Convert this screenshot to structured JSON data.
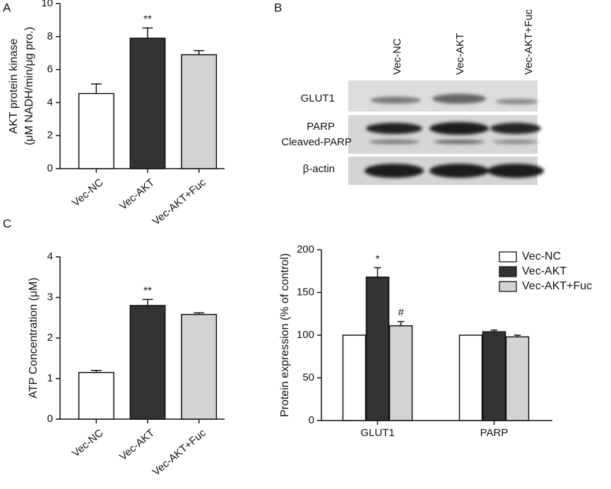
{
  "chart_data": [
    {
      "type": "bar",
      "panel": "A",
      "ylabel": [
        "AKT protein kinase",
        "(μM NADH/min/μg pro.)"
      ],
      "categories": [
        "Vec-NC",
        "Vec-AKT",
        "Vec-AKT+Fuc"
      ],
      "values": [
        4.55,
        7.9,
        6.9
      ],
      "errors": [
        0.58,
        0.62,
        0.25
      ],
      "value_annotations": [
        null,
        "**",
        null
      ],
      "colors": [
        "#ffffff",
        "#333333",
        "#d3d3d3"
      ],
      "ylim": [
        0,
        10
      ],
      "yticks": [
        0,
        2,
        4,
        6,
        8,
        10
      ]
    },
    {
      "type": "bar",
      "panel": "C",
      "ylabel": "ATP Concentration (μM)",
      "categories": [
        "Vec-NC",
        "Vec-AKT",
        "Vec-AKT+Fuc"
      ],
      "values": [
        1.15,
        2.8,
        2.58
      ],
      "errors": [
        0.05,
        0.15,
        0.04
      ],
      "value_annotations": [
        null,
        "**",
        null
      ],
      "colors": [
        "#ffffff",
        "#333333",
        "#d3d3d3"
      ],
      "ylim": [
        0,
        4
      ],
      "yticks": [
        0,
        1,
        2,
        3,
        4
      ]
    },
    {
      "type": "grouped_bar",
      "ylabel": "Protein expression (% of control)",
      "categories": [
        "GLUT1",
        "PARP"
      ],
      "series": [
        {
          "name": "Vec-NC",
          "color": "#ffffff",
          "values": [
            100,
            100
          ],
          "errors": [
            0,
            0
          ],
          "value_annotations": [
            null,
            null
          ]
        },
        {
          "name": "Vec-AKT",
          "color": "#333333",
          "values": [
            168,
            104
          ],
          "errors": [
            11,
            2
          ],
          "value_annotations": [
            "*",
            null
          ]
        },
        {
          "name": "Vec-AKT+Fuc",
          "color": "#d3d3d3",
          "values": [
            111,
            98
          ],
          "errors": [
            5,
            2
          ],
          "value_annotations": [
            "#",
            null
          ]
        }
      ],
      "ylim": [
        0,
        200
      ],
      "yticks": [
        0,
        50,
        100,
        150,
        200
      ],
      "legend": "top-right"
    }
  ],
  "western_blot": {
    "panel": "B",
    "lanes": [
      "Vec-NC",
      "Vec-AKT",
      "Vec-AKT+Fuc"
    ],
    "rows": [
      "GLUT1",
      "PARP",
      "Cleaved-PARP",
      "β-actin"
    ]
  }
}
